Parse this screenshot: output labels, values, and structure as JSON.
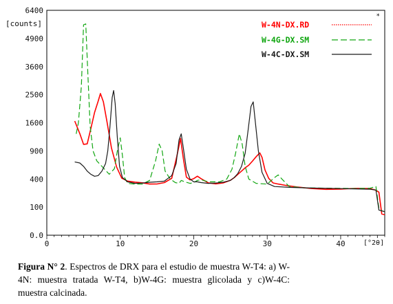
{
  "chart_data": {
    "type": "line",
    "y_unit_label": "[counts]",
    "x_unit_label": "[°2θ]",
    "y_ticks": [
      0.0,
      100,
      400,
      900,
      1600,
      2500,
      3600,
      4900,
      6400
    ],
    "y_tick_labels": [
      "0.0",
      "100",
      "400",
      "900",
      "1600",
      "2500",
      "3600",
      "4900",
      "6400"
    ],
    "y_scale": "sqrt",
    "ylim": [
      0,
      6400
    ],
    "x_ticks": [
      0,
      10,
      20,
      30,
      40
    ],
    "x_tick_labels": [
      "0",
      "10",
      "20",
      "30",
      "40"
    ],
    "xlim": [
      0,
      46
    ],
    "legend_position": "top-right",
    "series": [
      {
        "name": "W-4N-DX.RD",
        "color": "#ff0000",
        "style": "dotted",
        "x": [
          3.8,
          4.5,
          5.0,
          5.5,
          6.0,
          6.5,
          7.0,
          7.3,
          7.7,
          8.2,
          8.8,
          9.5,
          10.2,
          11.0,
          12.0,
          13.0,
          14.0,
          15.0,
          16.0,
          17.0,
          17.7,
          18.2,
          18.6,
          19.0,
          19.5,
          20.0,
          20.5,
          21.0,
          22.0,
          23.0,
          24.0,
          25.0,
          25.5,
          26.0,
          26.5,
          27.0,
          27.5,
          28.0,
          28.5,
          29.0,
          29.3,
          29.7,
          30.2,
          30.8,
          31.5,
          32.5,
          34.0,
          36.0,
          38.0,
          40.0,
          42.0,
          44.0,
          44.8,
          45.2,
          45.6,
          46.0
        ],
        "y": [
          1650,
          1250,
          1000,
          1050,
          1500,
          2000,
          2300,
          2450,
          2150,
          1600,
          1000,
          620,
          420,
          360,
          340,
          340,
          340,
          350,
          360,
          400,
          750,
          1150,
          750,
          450,
          400,
          400,
          420,
          390,
          350,
          350,
          360,
          380,
          400,
          450,
          520,
          600,
          650,
          700,
          750,
          820,
          760,
          560,
          430,
          350,
          320,
          300,
          290,
          285,
          280,
          275,
          270,
          262,
          250,
          240,
          60,
          55
        ]
      },
      {
        "name": "W-4G-DX.SM",
        "color": "#11a611",
        "style": "dashed",
        "x": [
          4.0,
          4.3,
          4.7,
          5.0,
          5.3,
          5.6,
          5.9,
          6.3,
          6.8,
          7.5,
          8.5,
          9.2,
          9.6,
          10.0,
          10.3,
          10.6,
          11.0,
          12.0,
          13.0,
          14.0,
          14.8,
          15.3,
          15.7,
          16.1,
          16.8,
          17.5,
          18.0,
          18.3,
          18.8,
          19.5,
          20.0,
          20.5,
          21.0,
          22.0,
          23.5,
          24.5,
          25.2,
          25.7,
          26.2,
          26.6,
          27.0,
          27.5,
          28.5,
          30.0,
          31.0,
          31.5,
          32.0,
          33.0,
          35.0,
          38.0,
          40.0,
          42.0,
          44.0,
          44.8,
          45.2,
          45.6,
          46.0
        ],
        "y": [
          1300,
          1600,
          2800,
          5600,
          5650,
          3200,
          1500,
          900,
          700,
          600,
          470,
          560,
          900,
          1200,
          800,
          420,
          340,
          330,
          330,
          380,
          700,
          1050,
          900,
          520,
          400,
          350,
          340,
          380,
          360,
          340,
          350,
          380,
          390,
          360,
          360,
          400,
          550,
          850,
          1300,
          1050,
          600,
          400,
          340,
          330,
          420,
          460,
          400,
          300,
          285,
          280,
          278,
          275,
          280,
          300,
          90,
          75,
          70
        ]
      },
      {
        "name": "W-4C-DX.SM",
        "color": "#1a1a1a",
        "style": "solid",
        "x": [
          3.8,
          4.5,
          5.0,
          5.5,
          6.0,
          6.5,
          7.0,
          7.5,
          8.0,
          8.3,
          8.6,
          8.9,
          9.1,
          9.3,
          9.6,
          9.9,
          10.3,
          11.0,
          12.0,
          13.0,
          14.0,
          15.0,
          16.0,
          17.0,
          17.6,
          18.0,
          18.3,
          18.6,
          19.0,
          19.5,
          20.0,
          20.5,
          21.0,
          22.0,
          23.0,
          24.0,
          25.0,
          25.5,
          26.0,
          26.5,
          27.0,
          27.4,
          27.8,
          28.1,
          28.4,
          28.8,
          29.3,
          30.0,
          31.0,
          33.0,
          36.0,
          40.0,
          44.0,
          44.8,
          45.2,
          45.6,
          46.0
        ],
        "y": [
          680,
          660,
          600,
          520,
          470,
          440,
          450,
          520,
          650,
          900,
          1500,
          2400,
          2650,
          2200,
          1200,
          600,
          420,
          360,
          340,
          345,
          355,
          360,
          370,
          450,
          650,
          1150,
          1300,
          950,
          550,
          400,
          360,
          360,
          350,
          340,
          345,
          355,
          380,
          420,
          480,
          600,
          850,
          1400,
          2100,
          2250,
          1600,
          900,
          500,
          340,
          300,
          290,
          282,
          275,
          268,
          258,
          80,
          75,
          70
        ]
      }
    ]
  },
  "caption": {
    "label": "Figura N° 2",
    "text": ". Espectros de DRX para el estudio de muestra W-T4: a) W-4N: muestra tratada W-T4, b)W-4G: muestra glicolada y c)W-4C: muestra calcinada."
  }
}
